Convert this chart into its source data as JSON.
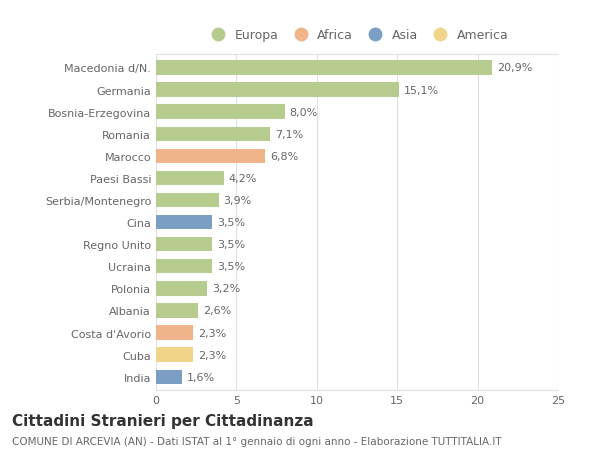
{
  "categories": [
    "Macedonia d/N.",
    "Germania",
    "Bosnia-Erzegovina",
    "Romania",
    "Marocco",
    "Paesi Bassi",
    "Serbia/Montenegro",
    "Cina",
    "Regno Unito",
    "Ucraina",
    "Polonia",
    "Albania",
    "Costa d'Avorio",
    "Cuba",
    "India"
  ],
  "values": [
    20.9,
    15.1,
    8.0,
    7.1,
    6.8,
    4.2,
    3.9,
    3.5,
    3.5,
    3.5,
    3.2,
    2.6,
    2.3,
    2.3,
    1.6
  ],
  "labels": [
    "20,9%",
    "15,1%",
    "8,0%",
    "7,1%",
    "6,8%",
    "4,2%",
    "3,9%",
    "3,5%",
    "3,5%",
    "3,5%",
    "3,2%",
    "2,6%",
    "2,3%",
    "2,3%",
    "1,6%"
  ],
  "colors": [
    "#b5cc8e",
    "#b5cc8e",
    "#b5cc8e",
    "#b5cc8e",
    "#f0b48a",
    "#b5cc8e",
    "#b5cc8e",
    "#7b9ec4",
    "#b5cc8e",
    "#b5cc8e",
    "#b5cc8e",
    "#b5cc8e",
    "#f0b48a",
    "#f0d48a",
    "#7b9ec4"
  ],
  "legend_labels": [
    "Europa",
    "Africa",
    "Asia",
    "America"
  ],
  "legend_colors": [
    "#b5cc8e",
    "#f0b48a",
    "#7b9ec4",
    "#f0d48a"
  ],
  "title": "Cittadini Stranieri per Cittadinanza",
  "subtitle": "COMUNE DI ARCEVIA (AN) - Dati ISTAT al 1° gennaio di ogni anno - Elaborazione TUTTITALIA.IT",
  "xlim": [
    0,
    25
  ],
  "xticks": [
    0,
    5,
    10,
    15,
    20,
    25
  ],
  "background_color": "#ffffff",
  "bar_height": 0.65,
  "grid_color": "#e0e0e0",
  "text_color": "#666666",
  "value_fontsize": 8,
  "label_fontsize": 8,
  "title_fontsize": 11,
  "subtitle_fontsize": 7.5
}
